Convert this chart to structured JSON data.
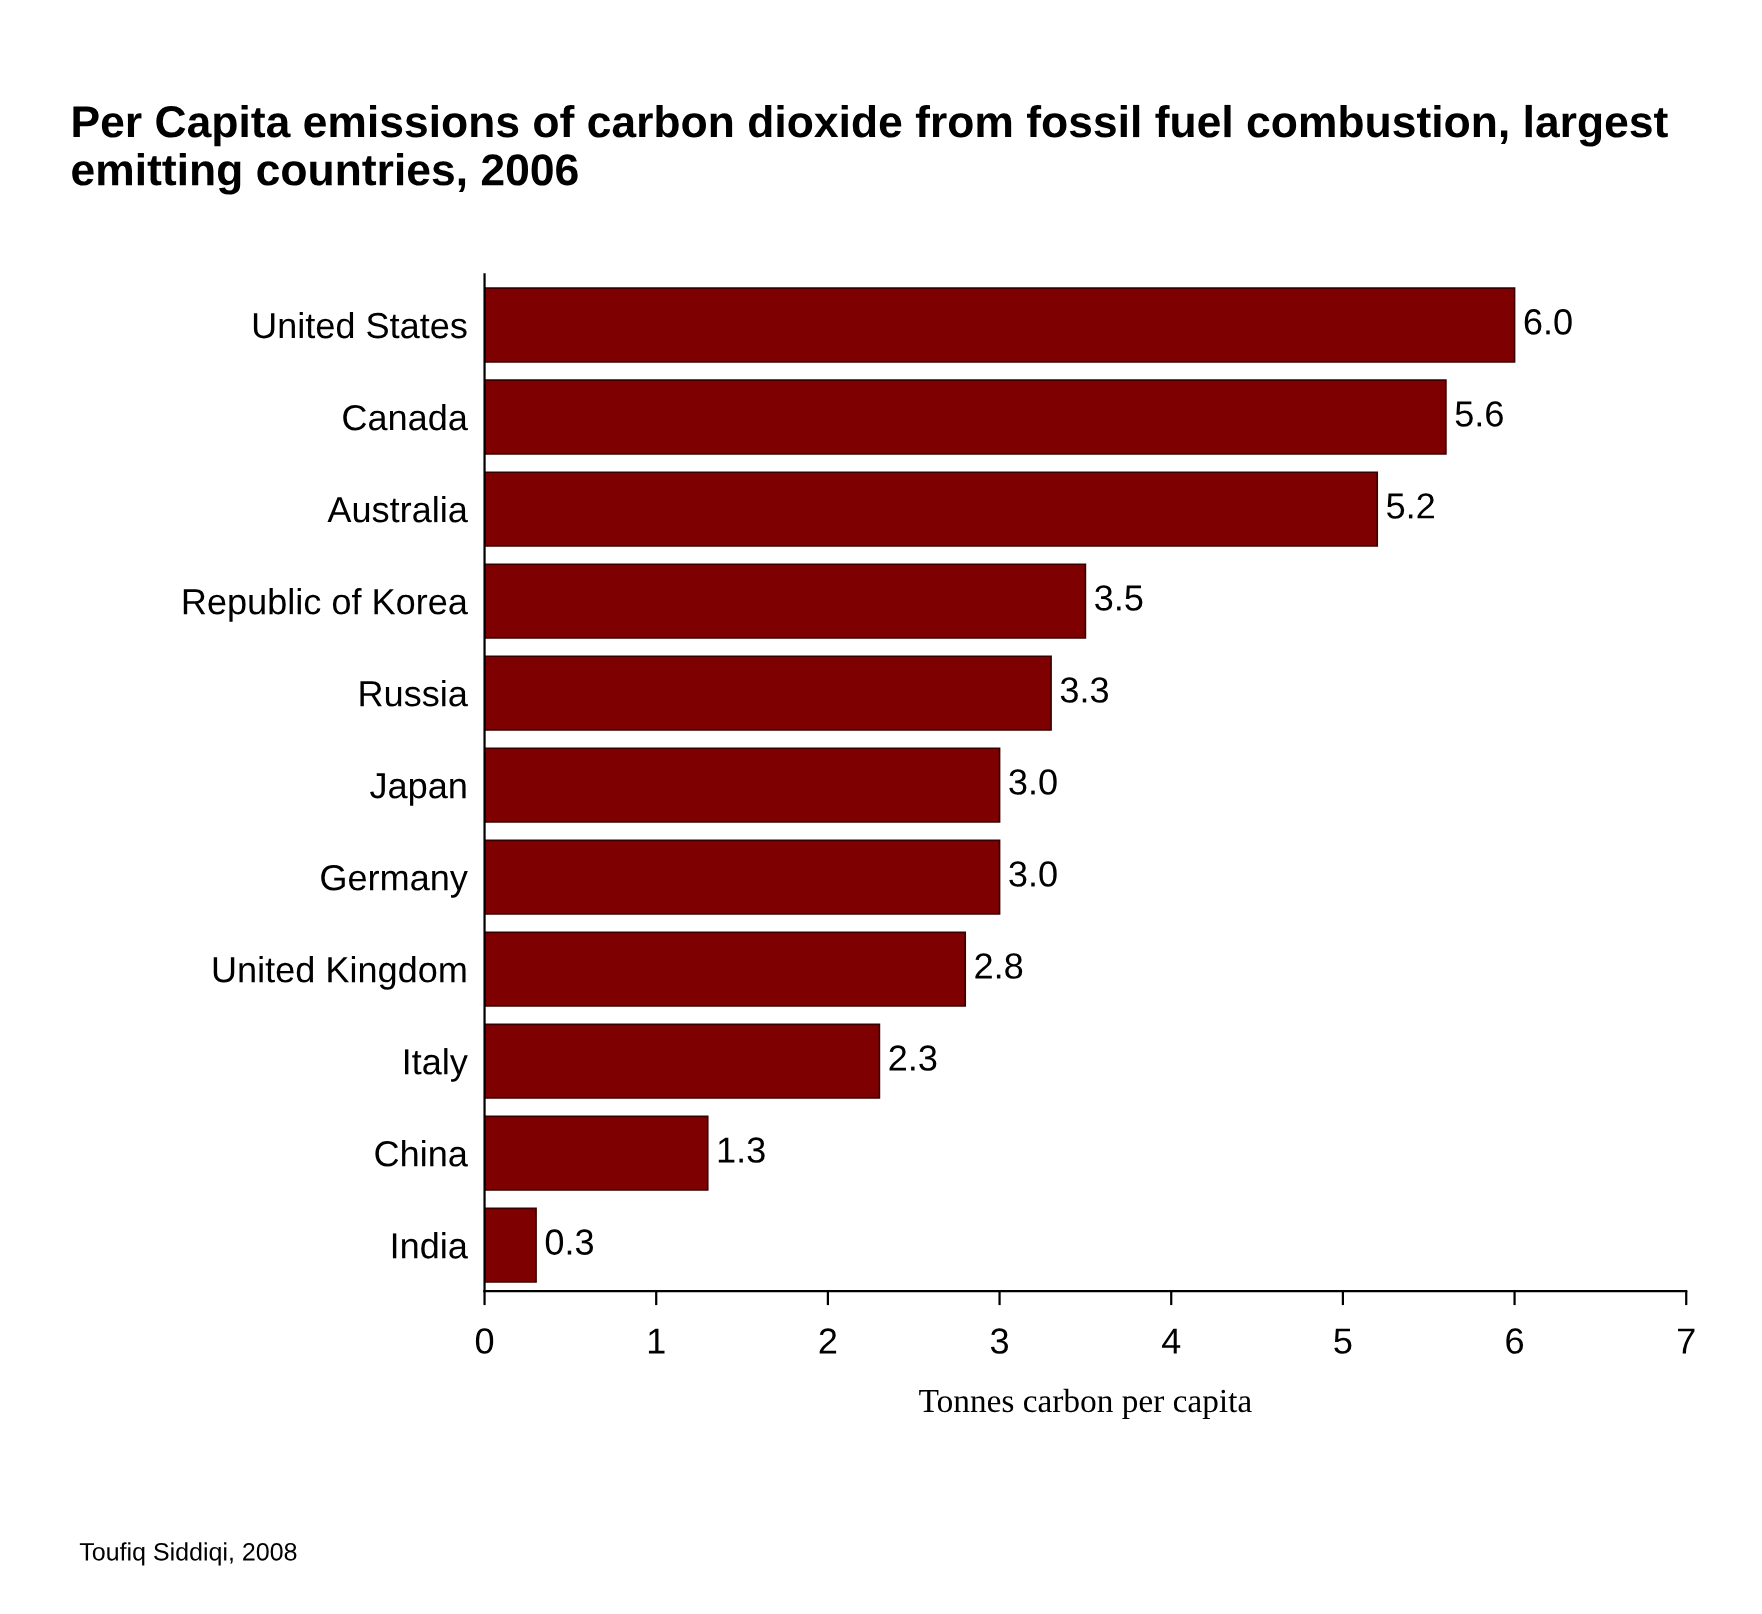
{
  "chart_data": {
    "type": "bar",
    "orientation": "horizontal",
    "title": "Per Capita emissions of carbon dioxide from fossil fuel combustion, largest emitting countries, 2006",
    "categories": [
      "United States",
      "Canada",
      "Australia",
      "Republic of Korea",
      "Russia",
      "Japan",
      "Germany",
      "United Kingdom",
      "Italy",
      "China",
      "India"
    ],
    "values": [
      6.0,
      5.6,
      5.2,
      3.5,
      3.3,
      3.0,
      3.0,
      2.8,
      2.3,
      1.3,
      0.3
    ],
    "color": "#7f0000",
    "xlim": [
      0,
      7
    ],
    "xticks": [
      0,
      1,
      2,
      3,
      4,
      5,
      6,
      7
    ],
    "xlabel": "Tonnes carbon per capita",
    "value_labels": [
      "6.0",
      "5.6",
      "5.2",
      "3.5",
      "3.3",
      "3.0",
      "3.0",
      "2.8",
      "2.3",
      "1.3",
      "0.3"
    ],
    "grid": false,
    "annotations": [
      "Toufiq Siddiqi, 2008"
    ]
  }
}
